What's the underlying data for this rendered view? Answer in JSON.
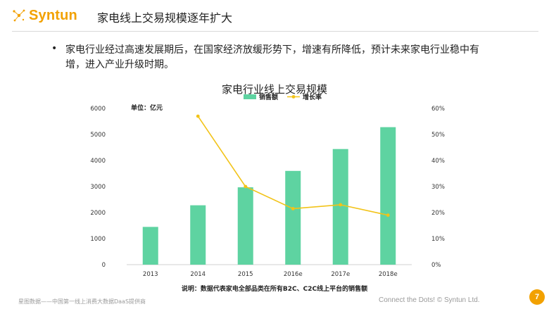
{
  "header": {
    "logo_text": "Syntun",
    "title": "家电线上交易规模逐年扩大"
  },
  "bullet": {
    "marker": "•",
    "text": "家电行业经过高速发展期后，在国家经济放缓形势下，增速有所降低，预计未来家电行业稳中有增，进入产业升级时期。"
  },
  "chart_data": {
    "type": "bar",
    "title": "家电行业线上交易规模",
    "unit_label": "单位：亿元",
    "categories": [
      "2013",
      "2014",
      "2015",
      "2016e",
      "2017e",
      "2018e"
    ],
    "series": [
      {
        "name": "销售额",
        "type": "bar",
        "axis": "left",
        "values": [
          1450,
          2280,
          2970,
          3600,
          4440,
          5280
        ],
        "color": "#5ed3a1"
      },
      {
        "name": "增长率",
        "type": "line",
        "axis": "right",
        "values": [
          null,
          0.57,
          0.3,
          0.215,
          0.23,
          0.19
        ],
        "color": "#f2c318"
      }
    ],
    "y_left": {
      "min": 0,
      "max": 6000,
      "ticks": [
        "0",
        "1000",
        "2000",
        "3000",
        "4000",
        "5000",
        "6000"
      ]
    },
    "y_right": {
      "min": 0,
      "max": 0.6,
      "ticks": [
        "0%",
        "10%",
        "20%",
        "30%",
        "40%",
        "50%",
        "60%"
      ]
    },
    "grid": false,
    "legend_position": "top-center",
    "note": "说明：数据代表家电全部品类在所有B2C、C2C线上平台的销售额"
  },
  "footer": {
    "left": "星图数据——中国第一线上消费大数据DaaS提供商",
    "right": "Connect the Dots! © Syntun Ltd.",
    "page": "7"
  }
}
